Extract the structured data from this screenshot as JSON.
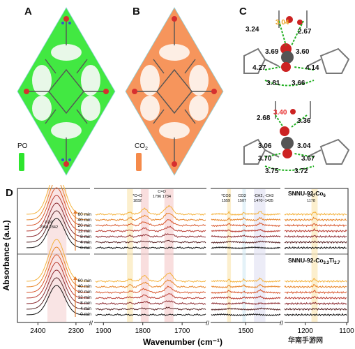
{
  "panels": {
    "A": {
      "letter": "A",
      "legend": "PO",
      "color": "#2ee52e"
    },
    "B": {
      "letter": "B",
      "legend": "CO2",
      "color": "#f58a4a"
    },
    "C": {
      "letter": "C",
      "top_distances": [
        "3.24",
        "3.04",
        "2.67",
        "3.69",
        "3.60",
        "4.27",
        "4.14",
        "3.81",
        "3.66"
      ],
      "bottom_distances": [
        "2.68",
        "3.40",
        "3.36",
        "3.06",
        "3.04",
        "3.70",
        "3.67",
        "3.75",
        "3.72"
      ]
    },
    "D": {
      "letter": "D"
    }
  },
  "chart_data": {
    "type": "line",
    "xlabel": "Wavenumber (cm⁻¹)",
    "ylabel": "Absorbance (a.u.)",
    "x_ticks": [
      "2400",
      "2300",
      "1900",
      "1800",
      "1700",
      "1500",
      "1200",
      "1100"
    ],
    "segments": [
      {
        "xlim": [
          2430,
          2265
        ]
      },
      {
        "xlim": [
          1920,
          1640
        ]
      },
      {
        "xlim": [
          1620,
          1380
        ]
      },
      {
        "xlim": [
          1250,
          1100
        ]
      }
    ],
    "time_labels": [
      "60 min",
      "40 min",
      "20 min",
      "12 min",
      "8 min",
      "4 min",
      "0 min"
    ],
    "time_colors": [
      "#f4b23c",
      "#e8862a",
      "#d8552a",
      "#b83a30",
      "#8c2a30",
      "#5a2628",
      "#111111"
    ],
    "top_panel": {
      "title": "SNNU-92-Co",
      "title_sub": "6"
    },
    "bottom_panel": {
      "title": "SNNU-92-Co",
      "sub1": "3.3",
      "mid": "Ti",
      "sub2": "2.7"
    },
    "annotations": [
      {
        "label": "CO2",
        "values": "2360  2342"
      },
      {
        "label": "*C=O",
        "values": "1832"
      },
      {
        "label": "C=O",
        "values": "1796    1734"
      },
      {
        "label": "*CO3",
        "values": "1559"
      },
      {
        "label": "CO3",
        "values": "1507"
      },
      {
        "label": "-CH2, -CH3",
        "values": "1470~1435"
      },
      {
        "label": "C-O",
        "values": "1178"
      }
    ]
  },
  "watermark": "华南手游网"
}
